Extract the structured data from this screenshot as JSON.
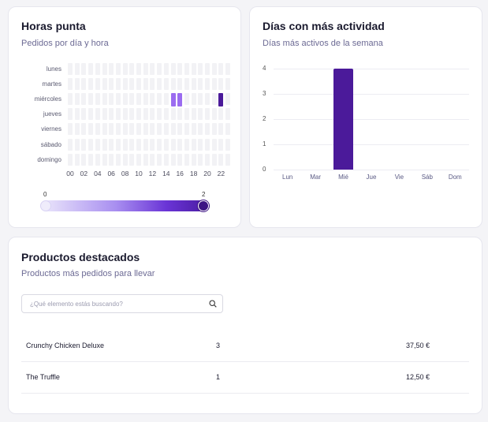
{
  "peak_hours": {
    "title": "Horas punta",
    "subtitle": "Pedidos por día y hora",
    "days": [
      "lunes",
      "martes",
      "miércoles",
      "jueves",
      "viernes",
      "sábado",
      "domingo"
    ],
    "hour_ticks": [
      "00",
      "02",
      "04",
      "06",
      "08",
      "10",
      "12",
      "14",
      "16",
      "18",
      "20",
      "22"
    ],
    "active_cells": [
      {
        "day": "miércoles",
        "hour": 15,
        "orders": 1
      },
      {
        "day": "miércoles",
        "hour": 16,
        "orders": 1
      },
      {
        "day": "miércoles",
        "hour": 22,
        "orders": 2
      }
    ],
    "legend_min": "0",
    "legend_max": "2",
    "colors": {
      "empty": "#f2f2f5",
      "low": "#9b6cf0",
      "high": "#4b1a9a"
    }
  },
  "busiest_days": {
    "title": "Días con más actividad",
    "subtitle": "Días más activos de la semana",
    "chart_data": {
      "type": "bar",
      "categories": [
        "Lun",
        "Mar",
        "Mié",
        "Jue",
        "Vie",
        "Sáb",
        "Dom"
      ],
      "values": [
        0,
        0,
        4,
        0,
        0,
        0,
        0
      ],
      "y_ticks": [
        "0",
        "1",
        "2",
        "3",
        "4"
      ],
      "ylim": [
        0,
        4
      ],
      "grid": true,
      "bar_color": "#4b1a9a"
    }
  },
  "products": {
    "title": "Productos destacados",
    "subtitle": "Productos más pedidos para llevar",
    "search_placeholder": "¿Qué elemento estás buscando?",
    "rows": [
      {
        "name": "Crunchy Chicken Deluxe",
        "qty": "3",
        "price": "37,50 €"
      },
      {
        "name": "The Truffle",
        "qty": "1",
        "price": "12,50 €"
      }
    ]
  }
}
